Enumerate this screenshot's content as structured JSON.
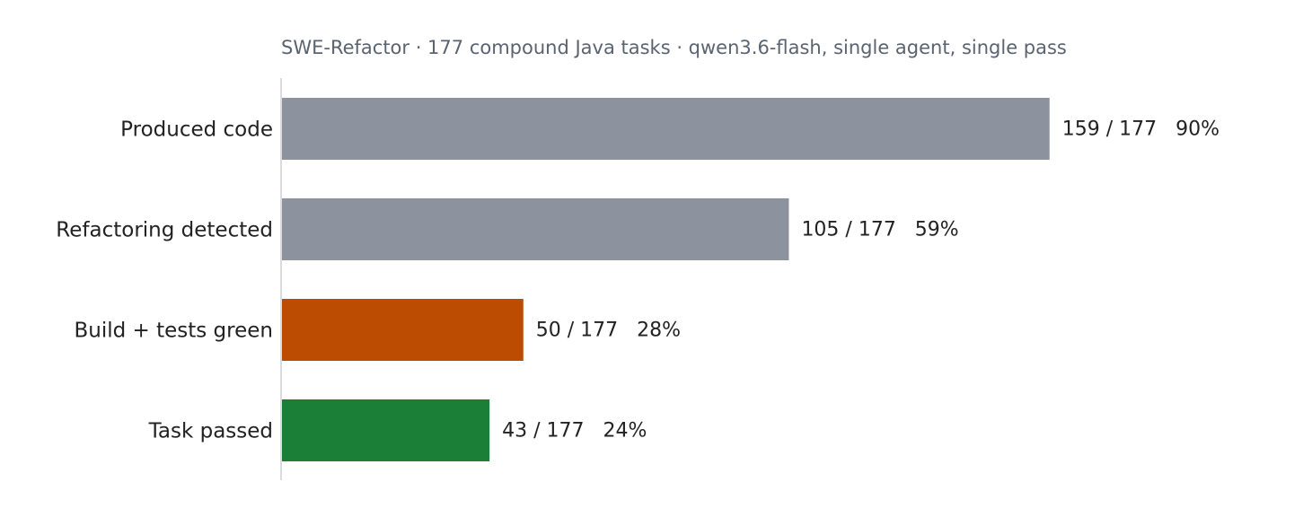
{
  "chart_data": {
    "type": "bar",
    "orientation": "horizontal",
    "title": "SWE-Refactor · 177 compound Java tasks · qwen3.6-flash, single agent, single pass",
    "categories": [
      "Produced code",
      "Refactoring detected",
      "Build + tests green",
      "Task passed"
    ],
    "values": [
      159,
      105,
      50,
      43
    ],
    "total": 177,
    "value_labels": [
      "159 / 177   90%",
      "105 / 177   59%",
      "50 / 177   28%",
      "43 / 177   24%"
    ],
    "colors": [
      "#8d939e",
      "#8d939e",
      "#bb4c01",
      "#1b7f37"
    ],
    "xlim": [
      0,
      177
    ],
    "grid": false,
    "legend": "none"
  }
}
